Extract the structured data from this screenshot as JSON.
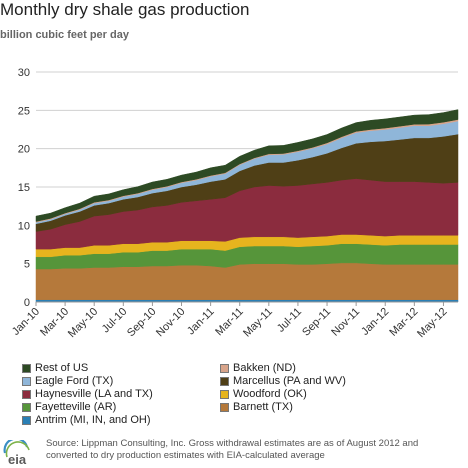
{
  "header": {
    "title": "Monthly dry shale gas production",
    "subtitle": "billion cubic feet per day"
  },
  "source": "Source: Lippman Consulting, Inc. Gross withdrawal estimates are as of August 2012 and converted to dry production estimates with EIA-calculated average",
  "logo": {
    "text": "eia"
  },
  "chart_data": {
    "type": "area",
    "stacked": true,
    "ylim": [
      0,
      30
    ],
    "yticks": [
      0,
      5,
      10,
      15,
      20,
      25,
      30
    ],
    "grid": "horizontal",
    "legend_placement": "bottom",
    "x_tick_labels": [
      "Jan-10",
      "Mar-10",
      "May-10",
      "Jul-10",
      "Sep-10",
      "Nov-10",
      "Jan-11",
      "Mar-11",
      "May-11",
      "Jul-11",
      "Sep-11",
      "Nov-11",
      "Jan-12",
      "Mar-12",
      "May-12"
    ],
    "x": [
      "Jan-10",
      "Feb-10",
      "Mar-10",
      "Apr-10",
      "May-10",
      "Jun-10",
      "Jul-10",
      "Aug-10",
      "Sep-10",
      "Oct-10",
      "Nov-10",
      "Dec-10",
      "Jan-11",
      "Feb-11",
      "Mar-11",
      "Apr-11",
      "May-11",
      "Jun-11",
      "Jul-11",
      "Aug-11",
      "Sep-11",
      "Oct-11",
      "Nov-11",
      "Dec-11",
      "Jan-12",
      "Feb-12",
      "Mar-12",
      "Apr-12",
      "May-12",
      "Jun-12"
    ],
    "series": [
      {
        "name": "Antrim (MI, IN, and OH)",
        "color": "#2a7fb5",
        "values": [
          0.3,
          0.3,
          0.3,
          0.3,
          0.3,
          0.3,
          0.3,
          0.3,
          0.3,
          0.3,
          0.3,
          0.3,
          0.3,
          0.3,
          0.3,
          0.3,
          0.3,
          0.3,
          0.3,
          0.3,
          0.3,
          0.3,
          0.3,
          0.3,
          0.3,
          0.3,
          0.3,
          0.3,
          0.3,
          0.3
        ]
      },
      {
        "name": "Barnett (TX)",
        "color": "#b5793b",
        "values": [
          4.0,
          4.0,
          4.1,
          4.1,
          4.2,
          4.2,
          4.3,
          4.3,
          4.4,
          4.4,
          4.5,
          4.5,
          4.4,
          4.2,
          4.6,
          4.7,
          4.7,
          4.7,
          4.6,
          4.6,
          4.7,
          4.8,
          4.8,
          4.7,
          4.6,
          4.6,
          4.6,
          4.6,
          4.6,
          4.6
        ]
      },
      {
        "name": "Fayetteville (AR)",
        "color": "#56953a",
        "values": [
          1.6,
          1.6,
          1.7,
          1.7,
          1.8,
          1.8,
          1.9,
          1.9,
          2.0,
          2.0,
          2.1,
          2.1,
          2.2,
          2.2,
          2.3,
          2.3,
          2.3,
          2.3,
          2.3,
          2.4,
          2.4,
          2.5,
          2.5,
          2.5,
          2.5,
          2.6,
          2.6,
          2.6,
          2.6,
          2.6
        ]
      },
      {
        "name": "Woodford (OK)",
        "color": "#e6b41e",
        "values": [
          1.0,
          1.0,
          1.0,
          1.0,
          1.1,
          1.1,
          1.1,
          1.1,
          1.1,
          1.1,
          1.1,
          1.1,
          1.1,
          1.2,
          1.2,
          1.2,
          1.2,
          1.2,
          1.2,
          1.2,
          1.2,
          1.2,
          1.2,
          1.2,
          1.2,
          1.2,
          1.2,
          1.2,
          1.2,
          1.2
        ]
      },
      {
        "name": "Haynesville (LA and TX)",
        "color": "#8b2c3e",
        "values": [
          2.3,
          2.6,
          3.0,
          3.4,
          3.8,
          4.0,
          4.2,
          4.4,
          4.6,
          4.8,
          5.0,
          5.2,
          5.4,
          5.7,
          6.1,
          6.5,
          6.7,
          6.6,
          6.8,
          6.9,
          7.0,
          7.1,
          7.3,
          7.2,
          7.1,
          7.0,
          7.0,
          6.9,
          6.8,
          6.9
        ]
      },
      {
        "name": "Marcellus (PA and WV)",
        "color": "#4f3f16",
        "values": [
          1.0,
          1.1,
          1.2,
          1.3,
          1.4,
          1.5,
          1.6,
          1.7,
          1.8,
          1.9,
          2.0,
          2.1,
          2.3,
          2.4,
          2.6,
          2.8,
          3.0,
          3.1,
          3.3,
          3.5,
          3.8,
          4.2,
          4.6,
          5.0,
          5.3,
          5.5,
          5.7,
          5.8,
          6.1,
          6.3
        ]
      },
      {
        "name": "Eagle Ford (TX)",
        "color": "#8fb6d9",
        "values": [
          0.2,
          0.2,
          0.2,
          0.25,
          0.3,
          0.3,
          0.35,
          0.4,
          0.45,
          0.5,
          0.55,
          0.6,
          0.7,
          0.75,
          0.8,
          0.9,
          1.0,
          1.05,
          1.1,
          1.15,
          1.2,
          1.3,
          1.4,
          1.45,
          1.5,
          1.55,
          1.6,
          1.6,
          1.65,
          1.7
        ]
      },
      {
        "name": "Bakken (ND)",
        "color": "#d8a48a",
        "values": [
          0.1,
          0.1,
          0.1,
          0.1,
          0.1,
          0.1,
          0.1,
          0.1,
          0.1,
          0.1,
          0.1,
          0.1,
          0.1,
          0.1,
          0.1,
          0.1,
          0.12,
          0.12,
          0.12,
          0.12,
          0.15,
          0.15,
          0.15,
          0.15,
          0.18,
          0.18,
          0.18,
          0.2,
          0.2,
          0.2
        ]
      },
      {
        "name": "Rest of US",
        "color": "#2d4a24",
        "values": [
          0.7,
          0.7,
          0.7,
          0.75,
          0.8,
          0.8,
          0.8,
          0.85,
          0.9,
          0.9,
          0.9,
          0.95,
          1.0,
          1.0,
          1.0,
          1.0,
          1.05,
          1.05,
          1.1,
          1.1,
          1.1,
          1.15,
          1.15,
          1.2,
          1.2,
          1.2,
          1.2,
          1.25,
          1.25,
          1.3
        ]
      }
    ]
  },
  "legend": [
    {
      "label": "Rest of US",
      "color": "#2d4a24"
    },
    {
      "label": "Bakken (ND)",
      "color": "#d8a48a"
    },
    {
      "label": "Eagle Ford (TX)",
      "color": "#8fb6d9"
    },
    {
      "label": "Marcellus (PA and WV)",
      "color": "#4f3f16"
    },
    {
      "label": "Haynesville (LA and TX)",
      "color": "#8b2c3e"
    },
    {
      "label": "Woodford (OK)",
      "color": "#e6b41e"
    },
    {
      "label": "Fayetteville (AR)",
      "color": "#56953a"
    },
    {
      "label": "Barnett (TX)",
      "color": "#b5793b"
    },
    {
      "label": "Antrim (MI, IN, and OH)",
      "color": "#2a7fb5"
    }
  ]
}
